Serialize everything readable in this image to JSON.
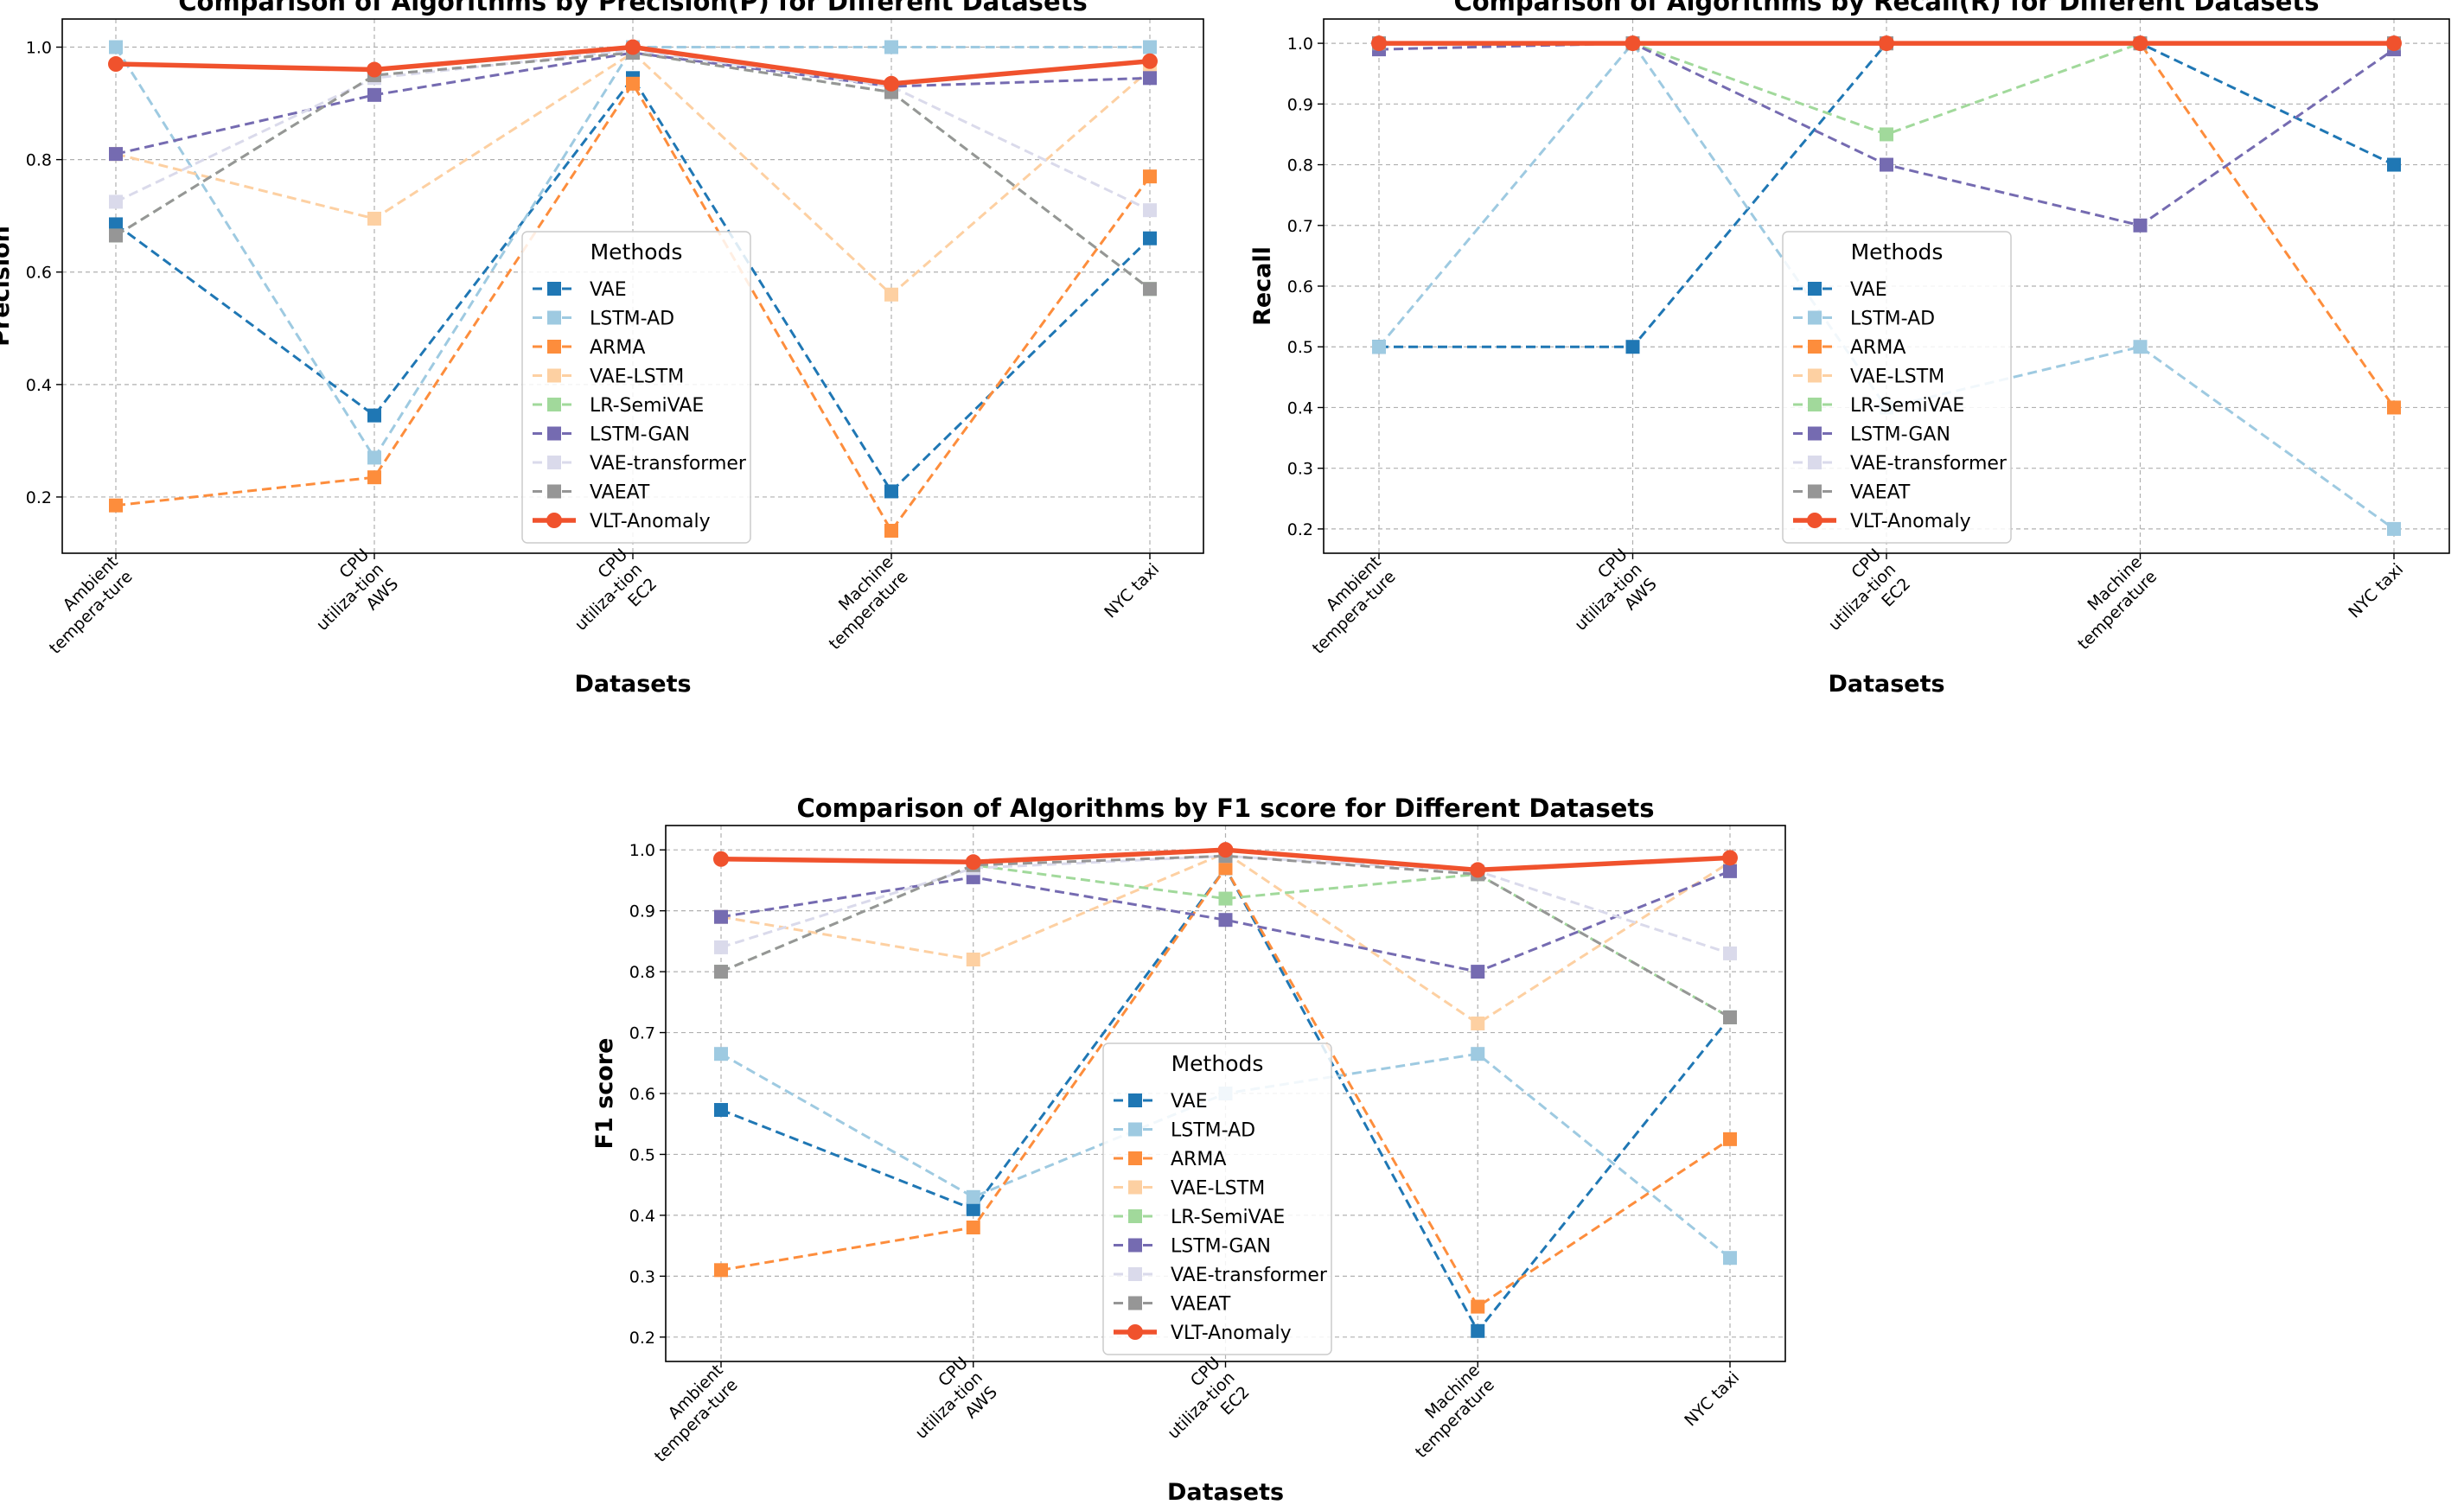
{
  "chart_data": [
    {
      "type": "line",
      "title": "Comparison of Algorithms by Precision(P) for Different Datasets",
      "xlabel": "Datasets",
      "ylabel": "Precision",
      "categories": [
        [
          "Ambient",
          "tempera-ture"
        ],
        [
          "CPU",
          "utiliza-tion",
          "AWS"
        ],
        [
          "CPU",
          "utiliza-tion",
          "EC2"
        ],
        [
          "Machine",
          "temperature"
        ],
        [
          "NYC taxi"
        ]
      ],
      "ylim": [
        0.1,
        1.05
      ],
      "yticks": [
        "0.2",
        "0.4",
        "0.6",
        "0.8",
        "1.0"
      ],
      "grid": true,
      "legend": {
        "title": "Methods",
        "loc": "center"
      },
      "series": [
        {
          "name": "VAE",
          "values": [
            0.685,
            0.345,
            0.945,
            0.21,
            0.66
          ]
        },
        {
          "name": "LSTM-AD",
          "values": [
            1.0,
            0.27,
            1.0,
            1.0,
            1.0
          ]
        },
        {
          "name": "ARMA",
          "values": [
            0.185,
            0.235,
            0.935,
            0.14,
            0.77
          ]
        },
        {
          "name": "VAE-LSTM",
          "values": [
            0.81,
            0.695,
            0.99,
            0.56,
            0.96
          ]
        },
        {
          "name": "LR-SemiVAE",
          "values": [
            0.665,
            0.95,
            0.99,
            0.92,
            0.57
          ]
        },
        {
          "name": "LSTM-GAN",
          "values": [
            0.81,
            0.915,
            0.99,
            0.93,
            0.945
          ]
        },
        {
          "name": "VAE-transformer",
          "values": [
            0.725,
            0.945,
            0.995,
            0.93,
            0.71
          ]
        },
        {
          "name": "VAEAT",
          "values": [
            0.665,
            0.95,
            0.99,
            0.92,
            0.57
          ]
        },
        {
          "name": "VLT-Anomaly",
          "values": [
            0.97,
            0.96,
            1.0,
            0.935,
            0.975
          ]
        }
      ]
    },
    {
      "type": "line",
      "title": "Comparison of Algorithms by Recall(R) for Different Datasets",
      "xlabel": "Datasets",
      "ylabel": "Recall",
      "categories": [
        [
          "Ambient",
          "tempera-ture"
        ],
        [
          "CPU",
          "utiliza-tion",
          "AWS"
        ],
        [
          "CPU",
          "utiliza-tion",
          "EC2"
        ],
        [
          "Machine",
          "temperature"
        ],
        [
          "NYC taxi"
        ]
      ],
      "ylim": [
        0.16,
        1.04
      ],
      "yticks": [
        "0.2",
        "0.3",
        "0.4",
        "0.5",
        "0.6",
        "0.7",
        "0.8",
        "0.9",
        "1.0"
      ],
      "grid": true,
      "legend": {
        "title": "Methods",
        "loc": "center"
      },
      "series": [
        {
          "name": "VAE",
          "values": [
            0.5,
            0.5,
            1.0,
            1.0,
            0.8
          ]
        },
        {
          "name": "LSTM-AD",
          "values": [
            0.5,
            1.0,
            0.4,
            0.5,
            0.2
          ]
        },
        {
          "name": "ARMA",
          "values": [
            1.0,
            1.0,
            1.0,
            1.0,
            0.4
          ]
        },
        {
          "name": "VAE-LSTM",
          "values": [
            1.0,
            1.0,
            1.0,
            1.0,
            1.0
          ]
        },
        {
          "name": "LR-SemiVAE",
          "values": [
            1.0,
            1.0,
            0.85,
            1.0,
            1.0
          ]
        },
        {
          "name": "LSTM-GAN",
          "values": [
            0.99,
            1.0,
            0.8,
            0.7,
            0.99
          ]
        },
        {
          "name": "VAE-transformer",
          "values": [
            1.0,
            1.0,
            1.0,
            1.0,
            1.0
          ]
        },
        {
          "name": "VAEAT",
          "values": [
            1.0,
            1.0,
            1.0,
            1.0,
            1.0
          ]
        },
        {
          "name": "VLT-Anomaly",
          "values": [
            1.0,
            1.0,
            1.0,
            1.0,
            1.0
          ]
        }
      ]
    },
    {
      "type": "line",
      "title": "Comparison of Algorithms by F1 score for Different Datasets",
      "xlabel": "Datasets",
      "ylabel": "F1 score",
      "categories": [
        [
          "Ambient",
          "tempera-ture"
        ],
        [
          "CPU",
          "utiliza-tion",
          "AWS"
        ],
        [
          "CPU",
          "utiliza-tion",
          "EC2"
        ],
        [
          "Machine",
          "temperature"
        ],
        [
          "NYC taxi"
        ]
      ],
      "ylim": [
        0.16,
        1.04
      ],
      "yticks": [
        "0.2",
        "0.3",
        "0.4",
        "0.5",
        "0.6",
        "0.7",
        "0.8",
        "0.9",
        "1.0"
      ],
      "grid": true,
      "legend": {
        "title": "Methods",
        "loc": "center"
      },
      "series": [
        {
          "name": "VAE",
          "values": [
            0.573,
            0.41,
            0.97,
            0.21,
            0.725
          ]
        },
        {
          "name": "LSTM-AD",
          "values": [
            0.665,
            0.43,
            0.6,
            0.665,
            0.33
          ]
        },
        {
          "name": "ARMA",
          "values": [
            0.31,
            0.38,
            0.97,
            0.25,
            0.525
          ]
        },
        {
          "name": "VAE-LSTM",
          "values": [
            0.89,
            0.82,
            0.995,
            0.715,
            0.98
          ]
        },
        {
          "name": "LR-SemiVAE",
          "values": [
            0.8,
            0.975,
            0.92,
            0.96,
            0.725
          ]
        },
        {
          "name": "LSTM-GAN",
          "values": [
            0.89,
            0.955,
            0.885,
            0.8,
            0.965
          ]
        },
        {
          "name": "VAE-transformer",
          "values": [
            0.84,
            0.97,
            0.99,
            0.965,
            0.83
          ]
        },
        {
          "name": "VAEAT",
          "values": [
            0.8,
            0.975,
            0.99,
            0.96,
            0.725
          ]
        },
        {
          "name": "VLT-Anomaly",
          "values": [
            0.985,
            0.98,
            1.0,
            0.967,
            0.987
          ]
        }
      ]
    }
  ],
  "style": {
    "series_colors": {
      "VAE": "#1f77b4",
      "LSTM-AD": "#9ecae1",
      "ARMA": "#fd8d3c",
      "VAE-LSTM": "#fdd0a2",
      "LR-SemiVAE": "#a1d99b",
      "LSTM-GAN": "#756bb1",
      "VAE-transformer": "#dadaeb",
      "VAEAT": "#969696",
      "VLT-Anomaly": "#f0522d"
    },
    "grid_color": "#b0b0b0"
  }
}
